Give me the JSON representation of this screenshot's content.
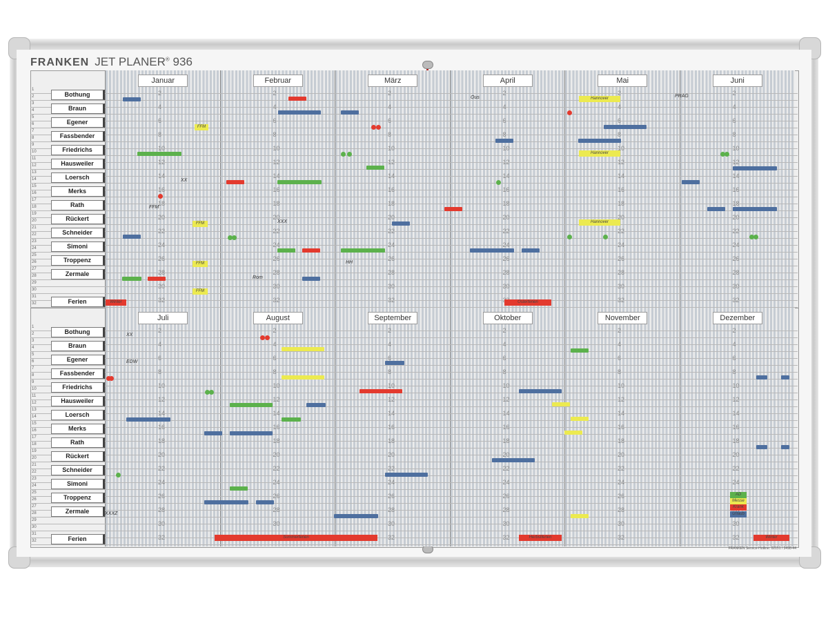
{
  "brand": "FRANKEN",
  "product": "JET PLANER",
  "product_reg": "®",
  "model_number": "936",
  "months_top": [
    "Januar",
    "Februar",
    "März",
    "April",
    "Mai",
    "Juni"
  ],
  "months_bottom": [
    "Juli",
    "August",
    "September",
    "Oktober",
    "November",
    "Dezember"
  ],
  "names": [
    "Bothung",
    "Braun",
    "Egener",
    "Fassbender",
    "Friedrichs",
    "Hausweiler",
    "Loersch",
    "Merks",
    "Rath",
    "Rückert",
    "Schneider",
    "Simoni",
    "Troppenz",
    "Zermale"
  ],
  "holiday_label": "Ferien",
  "row_numbers": [
    "1",
    "2",
    "3",
    "4",
    "5",
    "6",
    "7",
    "8",
    "9",
    "10",
    "11",
    "12",
    "13",
    "14",
    "15",
    "16",
    "17",
    "18",
    "19",
    "20",
    "21",
    "22",
    "23",
    "24",
    "25",
    "26",
    "27",
    "28",
    "29",
    "30",
    "31",
    "32"
  ],
  "week_numbers": [
    "2",
    "4",
    "6",
    "8",
    "10",
    "12",
    "14",
    "16",
    "18",
    "20",
    "22",
    "24",
    "26",
    "28",
    "30",
    "32"
  ],
  "notes": {
    "ffm": "FFM",
    "xx": "XX",
    "xxx": "XXX",
    "rom": "Rom",
    "hh": "HH",
    "ous": "Ous",
    "prag": "PRAG",
    "hannover": "Hannover",
    "edw": "EDW",
    "xxxz": "XXXZ"
  },
  "holidays": {
    "winter_start": "Winter",
    "ostern": "Osterferien",
    "sommer": "Sommerferien",
    "herbst": "Herbstferien",
    "winter_end": "Winter"
  },
  "legend": {
    "ad": "AD",
    "messe": "Messe",
    "krank": "Krank",
    "urlaub": "Urlaub"
  },
  "footer": "FRANKEN Service-Hotline: 02151 / 3498-44",
  "colors": {
    "blue": "#4e6f9f",
    "green": "#5cb14c",
    "red": "#e33a2e",
    "yellow": "#ecea50",
    "frame": "#c9c9c9"
  }
}
